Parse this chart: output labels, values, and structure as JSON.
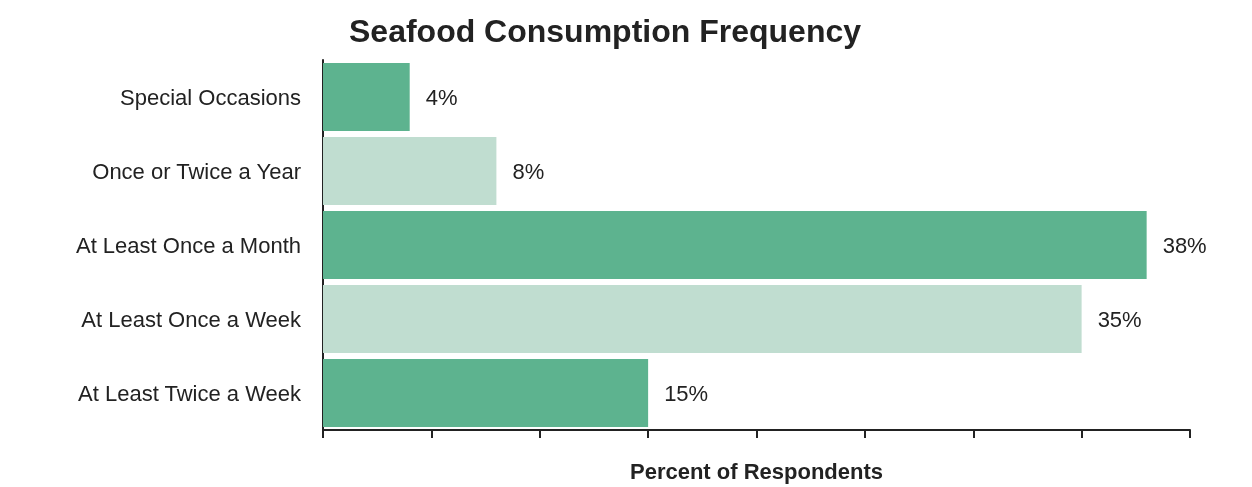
{
  "chart_data": {
    "type": "bar",
    "orientation": "horizontal",
    "title": "Seafood Consumption Frequency",
    "xlabel": "Percent of Respondents",
    "categories": [
      "Special Occasions",
      "Once or Twice a Year",
      "At Least Once a Month",
      "At Least Once a Week",
      "At Least Twice a Week"
    ],
    "values": [
      4,
      8,
      38,
      35,
      15
    ],
    "colors": [
      "#5db38f",
      "#c0ddd0",
      "#5db38f",
      "#c0ddd0",
      "#5db38f"
    ],
    "value_labels": [
      "4%",
      "8%",
      "38%",
      "35%",
      "15%"
    ],
    "xlim": [
      0,
      40
    ],
    "xticks": [
      {
        "value": 0,
        "label": null
      },
      {
        "value": 5,
        "label": null
      },
      {
        "value": 10,
        "label": null
      },
      {
        "value": 15,
        "label": null
      },
      {
        "value": 20,
        "label": null
      },
      {
        "value": 25,
        "label": null
      },
      {
        "value": 30,
        "label": null
      },
      {
        "value": 35,
        "label": null
      },
      {
        "value": 40,
        "label": null
      }
    ],
    "tick_labels": "y",
    "grid": false
  }
}
